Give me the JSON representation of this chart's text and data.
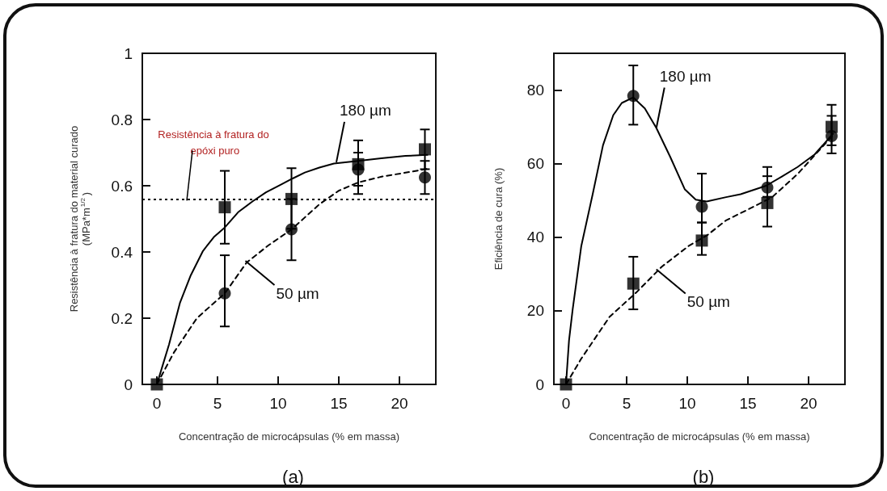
{
  "chart_data": [
    {
      "type": "scatter",
      "title": "(a)",
      "xlabel": "Concentração de microcápsulas (% em massa)",
      "ylabel": "Resistência à fratura do material curado (MPa*m$^{1/2}$)",
      "xlim": [
        -1.2,
        23
      ],
      "xticks": [
        0,
        5,
        10,
        15,
        20
      ],
      "ylim": [
        0,
        1
      ],
      "yticks": [
        0,
        0.2,
        0.4,
        0.6,
        0.8,
        1
      ],
      "series": [
        {
          "marker": "square",
          "color": "#000000",
          "x": [
            0,
            5.6,
            11.1,
            16.6,
            22.1
          ],
          "values": [
            0,
            0.535,
            0.56,
            0.665,
            0.71
          ],
          "errors": [
            null,
            [
              0.425,
              0.645
            ],
            [
              0.47,
              0.653
            ],
            [
              0.575,
              0.737
            ],
            [
              0.65,
              0.77
            ]
          ]
        },
        {
          "marker": "circle",
          "color": "#000000",
          "x": [
            5.6,
            11.1,
            16.6,
            22.1
          ],
          "values": [
            0.275,
            0.468,
            0.649,
            0.625
          ],
          "errors": [
            [
              0.175,
              0.39
            ],
            [
              0.375,
              0.56
            ],
            [
              0.6,
              0.7
            ],
            [
              0.575,
              0.675
            ]
          ]
        },
        {
          "type": "line",
          "marker": "none",
          "line_style": "solid",
          "color": "#000000",
          "x": [
            0,
            0.5,
            1,
            1.9,
            2.8,
            3.8,
            4.7,
            5.6,
            6.7,
            7.9,
            9,
            10.1,
            11.2,
            12.2,
            13.4,
            14.6,
            16.6,
            18.5,
            20.5,
            22.3
          ],
          "values": [
            0,
            0.06,
            0.12,
            0.246,
            0.33,
            0.403,
            0.445,
            0.474,
            0.52,
            0.553,
            0.58,
            0.601,
            0.622,
            0.64,
            0.655,
            0.667,
            0.675,
            0.683,
            0.69,
            0.693
          ]
        },
        {
          "type": "line",
          "marker": "none",
          "line_style": "dashed",
          "color": "#000000",
          "x": [
            0,
            1.4,
            3.3,
            5.6,
            7.4,
            9.2,
            11.1,
            13.4,
            15,
            16.6,
            18.6,
            20.6,
            22.3
          ],
          "values": [
            0,
            0.096,
            0.2,
            0.275,
            0.368,
            0.42,
            0.468,
            0.544,
            0.585,
            0.61,
            0.628,
            0.64,
            0.651
          ]
        }
      ],
      "ref_lines": [
        {
          "axis": "y",
          "value": 0.555,
          "label": "Resistência à fratura do epóxi puro",
          "color": "#000000",
          "line_style": "dotted"
        }
      ],
      "annotations": [
        {
          "text": "180 µm",
          "x": 14.8,
          "y": 0.671
        },
        {
          "text": "50 µm",
          "x": 7.3,
          "y": 0.373
        }
      ]
    },
    {
      "type": "scatter",
      "title": "(b)",
      "xlabel": "Concentração de microcápsulas (% em massa)",
      "ylabel": "Eficiência de cura (%)",
      "xlim": [
        -1,
        23
      ],
      "xticks": [
        0,
        5,
        10,
        15,
        20
      ],
      "ylim": [
        0,
        90
      ],
      "yticks": [
        0,
        20,
        40,
        60,
        80
      ],
      "series": [
        {
          "marker": "circle",
          "color": "#000000",
          "x": [
            5.55,
            11.2,
            16.6,
            21.9
          ],
          "values": [
            78.4,
            48.3,
            53.5,
            67.5
          ],
          "errors": [
            [
              70.6,
              86.7
            ],
            [
              44,
              57.3
            ],
            [
              51,
              59.1
            ],
            [
              62.8,
              76
            ]
          ]
        },
        {
          "marker": "square",
          "color": "#000000",
          "x": [
            0,
            5.55,
            11.2,
            16.6,
            21.9
          ],
          "values": [
            0,
            27.4,
            39.1,
            49.3,
            70
          ],
          "errors": [
            null,
            [
              20.4,
              34.7
            ],
            [
              35.2,
              44
            ],
            [
              42.9,
              56.6
            ],
            [
              65,
              73
            ]
          ]
        },
        {
          "type": "line",
          "marker": "none",
          "line_style": "solid",
          "color": "#000000",
          "x": [
            0,
            0.25,
            0.55,
            1.26,
            2.2,
            3.05,
            3.9,
            4.6,
            5.55,
            6.5,
            7.45,
            8.6,
            9.8,
            10.7,
            11.6,
            13.2,
            14.4,
            16.5,
            17.8,
            19.1,
            20.5,
            22
          ],
          "values": [
            0,
            12,
            20.4,
            37.6,
            51.7,
            65,
            73.2,
            76.5,
            78,
            75,
            69.7,
            61.8,
            53,
            50.2,
            49.7,
            50.9,
            51.7,
            54,
            56.5,
            59.1,
            62.5,
            68.1
          ]
        },
        {
          "type": "line",
          "marker": "none",
          "line_style": "dashed",
          "color": "#000000",
          "x": [
            0,
            1.26,
            3.6,
            5.8,
            7.9,
            10.1,
            11.7,
            13.2,
            15.1,
            17,
            19.1,
            22
          ],
          "values": [
            0,
            7,
            18.4,
            25,
            32,
            37.6,
            40.7,
            44.6,
            47.7,
            50.9,
            57.2,
            67.7
          ]
        }
      ],
      "annotations": [
        {
          "text": "180 µm",
          "x": 7.45,
          "y": 69.7
        },
        {
          "text": "50 µm",
          "x": 7.45,
          "y": 31.3
        }
      ]
    }
  ]
}
